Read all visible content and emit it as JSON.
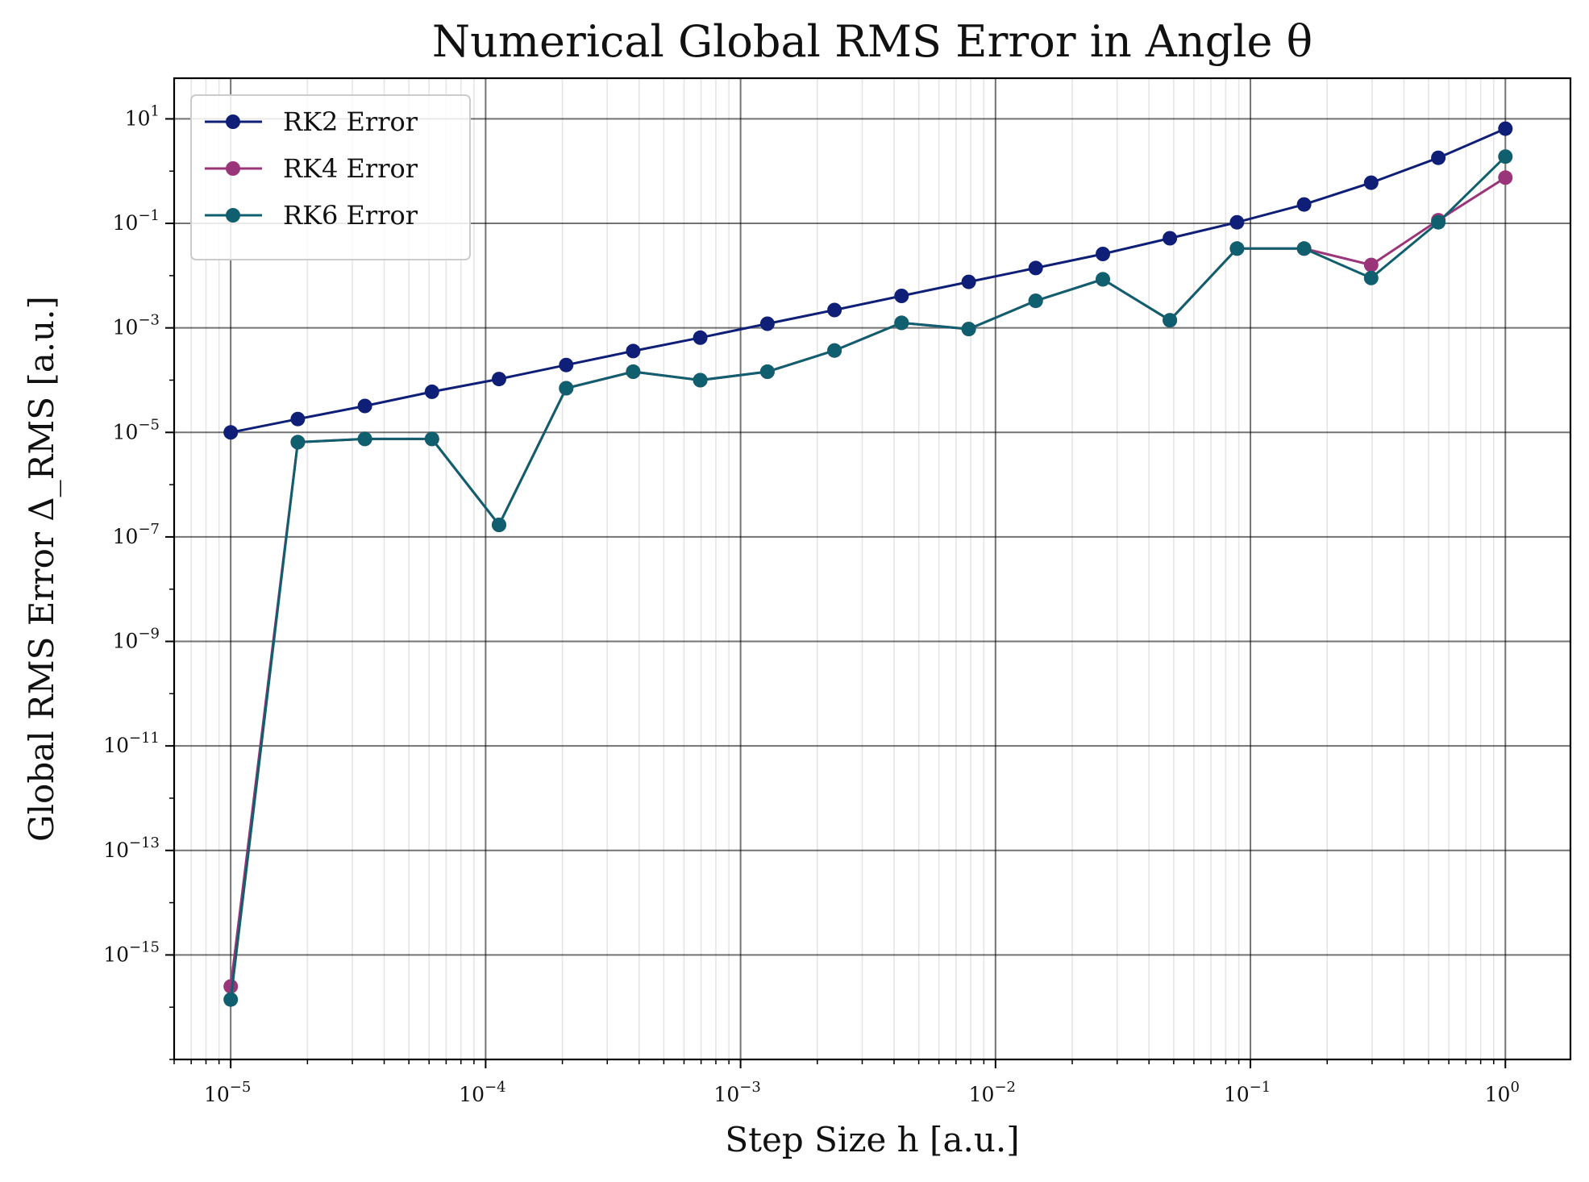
{
  "chart_data": {
    "type": "line",
    "title": "Numerical Global RMS Error in Angle θ",
    "xlabel": "Step Size h [a.u.]",
    "ylabel": "Global RMS Error Δ_RMS [a.u.]",
    "xscale": "log",
    "yscale": "log",
    "xlim": [
      6e-06,
      1.8
    ],
    "ylim": [
      1e-17,
      60
    ],
    "grid": true,
    "legend_position": "top-left",
    "x": [
      1e-05,
      1.833e-05,
      3.36e-05,
      6.16e-05,
      0.0001129,
      0.000207,
      0.000379,
      0.000695,
      0.001274,
      0.002336,
      0.00428,
      0.00785,
      0.01438,
      0.02637,
      0.0483,
      0.0886,
      0.1624,
      0.2976,
      0.5456,
      1.0
    ],
    "x_ticks": [
      {
        "base": "10",
        "exp": "−5",
        "value": 1e-05
      },
      {
        "base": "10",
        "exp": "−4",
        "value": 0.0001
      },
      {
        "base": "10",
        "exp": "−3",
        "value": 0.001
      },
      {
        "base": "10",
        "exp": "−2",
        "value": 0.01
      },
      {
        "base": "10",
        "exp": "−1",
        "value": 0.1
      },
      {
        "base": "10",
        "exp": "0",
        "value": 1
      }
    ],
    "y_ticks": [
      {
        "base": "10",
        "exp": "1",
        "value": 10.0
      },
      {
        "base": "10",
        "exp": "−1",
        "value": 0.1
      },
      {
        "base": "10",
        "exp": "−3",
        "value": 0.001
      },
      {
        "base": "10",
        "exp": "−5",
        "value": 1e-05
      },
      {
        "base": "10",
        "exp": "−7",
        "value": 1e-07
      },
      {
        "base": "10",
        "exp": "−9",
        "value": 1e-09
      },
      {
        "base": "10",
        "exp": "−11",
        "value": 1e-11
      },
      {
        "base": "10",
        "exp": "−13",
        "value": 1e-13
      },
      {
        "base": "10",
        "exp": "−15",
        "value": 1e-15
      }
    ],
    "series": [
      {
        "name": "RK2 Error",
        "color": "#0f1f78",
        "values": [
          1e-05,
          1.8e-05,
          3.2e-05,
          6e-05,
          0.000105,
          0.000195,
          0.00036,
          0.00065,
          0.0012,
          0.0022,
          0.0041,
          0.0076,
          0.014,
          0.026,
          0.052,
          0.105,
          0.23,
          0.6,
          1.8,
          6.5
        ]
      },
      {
        "name": "RK4 Error",
        "color": "#9b3579",
        "values": [
          2.5e-16,
          6.5e-06,
          7.5e-06,
          7.5e-06,
          1.7e-07,
          7e-05,
          0.000145,
          0.0001,
          0.000145,
          0.00037,
          0.00125,
          0.00095,
          0.0033,
          0.0085,
          0.0014,
          0.033,
          0.033,
          0.016,
          0.115,
          0.75
        ]
      },
      {
        "name": "RK6 Error",
        "color": "#0f5f6e",
        "values": [
          1.4e-16,
          6.5e-06,
          7.5e-06,
          7.5e-06,
          1.7e-07,
          7e-05,
          0.000145,
          0.0001,
          0.000145,
          0.00037,
          0.00125,
          0.00095,
          0.0033,
          0.0085,
          0.0014,
          0.033,
          0.033,
          0.009,
          0.105,
          1.9
        ]
      }
    ]
  }
}
